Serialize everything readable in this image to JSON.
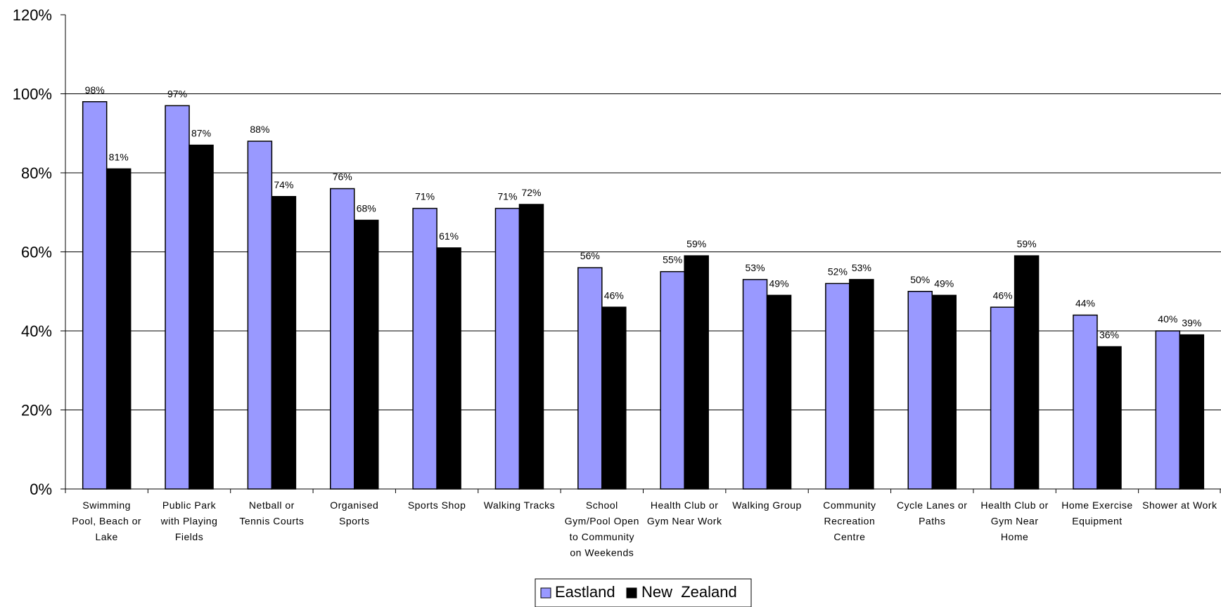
{
  "chart_data": {
    "type": "bar",
    "title": "",
    "xlabel": "",
    "ylabel": "",
    "ylim": [
      0,
      120
    ],
    "yticks": [
      "0%",
      "20%",
      "40%",
      "60%",
      "80%",
      "100%",
      "120%"
    ],
    "grid": true,
    "legend_position": "bottom",
    "categories": [
      [
        "Swimming",
        "Pool, Beach or",
        "Lake"
      ],
      [
        "Public Park",
        "with Playing",
        "Fields"
      ],
      [
        "Netball or",
        "Tennis Courts"
      ],
      [
        "Organised",
        "Sports"
      ],
      [
        "Sports Shop"
      ],
      [
        "Walking Tracks"
      ],
      [
        "School",
        "Gym/Pool Open",
        "to Community",
        "on Weekends"
      ],
      [
        "Health Club or",
        "Gym Near Work"
      ],
      [
        "Walking Group"
      ],
      [
        "Community",
        "Recreation",
        "Centre"
      ],
      [
        "Cycle Lanes or",
        "Paths"
      ],
      [
        "Health Club or",
        "Gym Near",
        "Home"
      ],
      [
        "Home Exercise",
        "Equipment"
      ],
      [
        "Shower at Work"
      ]
    ],
    "series": [
      {
        "name": "Eastland",
        "color": "#9999ff",
        "values": [
          98,
          97,
          88,
          76,
          71,
          71,
          56,
          55,
          53,
          52,
          50,
          46,
          44,
          40
        ],
        "labels": [
          "98%",
          "97%",
          "88%",
          "76%",
          "71%",
          "71%",
          "56%",
          "55%",
          "53%",
          "52%",
          "50%",
          "46%",
          "44%",
          "40%"
        ]
      },
      {
        "name": "New  Zealand",
        "color": "#000000",
        "values": [
          81,
          87,
          74,
          68,
          61,
          72,
          46,
          59,
          49,
          53,
          49,
          59,
          36,
          39
        ],
        "labels": [
          "81%",
          "87%",
          "74%",
          "68%",
          "61%",
          "72%",
          "46%",
          "59%",
          "49%",
          "53%",
          "49%",
          "59%",
          "36%",
          "39%"
        ]
      }
    ]
  }
}
